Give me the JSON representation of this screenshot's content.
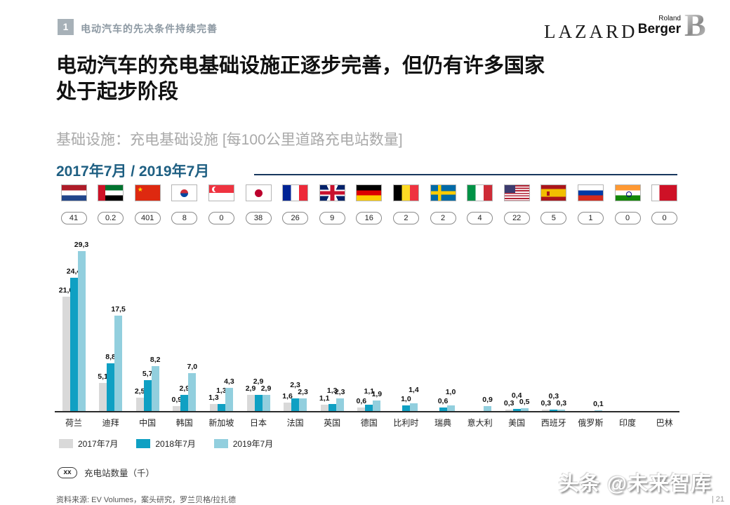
{
  "header": {
    "badge": "1",
    "section_title": "电动汽车的先决条件持续完善"
  },
  "logos": {
    "lazard": "LAZARD",
    "roland": "Roland",
    "berger": "Berger",
    "b_mark": "B"
  },
  "title": "电动汽车的充电基础设施正逐步完善，但仍有许多国家\n处于起步阶段",
  "subtitle": "基础设施：充电基础设施 [每100公里道路充电站数量]",
  "period": "2017年7月 / 2019年7月",
  "countries": [
    {
      "name": "荷兰",
      "flag": "nl",
      "stations": "41"
    },
    {
      "name": "迪拜",
      "flag": "ae",
      "stations": "0.2"
    },
    {
      "name": "中国",
      "flag": "cn",
      "stations": "401"
    },
    {
      "name": "韩国",
      "flag": "kr",
      "stations": "8"
    },
    {
      "name": "新加坡",
      "flag": "sg",
      "stations": "0"
    },
    {
      "name": "日本",
      "flag": "jp",
      "stations": "38"
    },
    {
      "name": "法国",
      "flag": "fr",
      "stations": "26"
    },
    {
      "name": "英国",
      "flag": "gb",
      "stations": "9"
    },
    {
      "name": "德国",
      "flag": "de",
      "stations": "16"
    },
    {
      "name": "比利时",
      "flag": "be",
      "stations": "2"
    },
    {
      "name": "瑞典",
      "flag": "se",
      "stations": "2"
    },
    {
      "name": "意大利",
      "flag": "it",
      "stations": "4"
    },
    {
      "name": "美国",
      "flag": "us",
      "stations": "22"
    },
    {
      "name": "西班牙",
      "flag": "es",
      "stations": "5"
    },
    {
      "name": "俄罗斯",
      "flag": "ru",
      "stations": "1"
    },
    {
      "name": "印度",
      "flag": "in",
      "stations": "0"
    },
    {
      "name": "巴林",
      "flag": "bh",
      "stations": "0"
    }
  ],
  "chart_data": {
    "type": "bar",
    "title": "充电基础设施 [每100公里道路充电站数量]",
    "categories": [
      "荷兰",
      "迪拜",
      "中国",
      "韩国",
      "新加坡",
      "日本",
      "法国",
      "英国",
      "德国",
      "比利时",
      "瑞典",
      "意大利",
      "美国",
      "西班牙",
      "俄罗斯",
      "印度",
      "巴林"
    ],
    "series": [
      {
        "name": "2017年7月",
        "color": "#d9d9d9",
        "values": [
          21.0,
          5.1,
          2.5,
          0.9,
          1.3,
          2.9,
          1.6,
          1.1,
          0.6,
          null,
          null,
          null,
          0.3,
          0.3,
          null,
          null,
          null
        ]
      },
      {
        "name": "2018年7月",
        "color": "#0fa0c3",
        "values": [
          24.4,
          8.8,
          5.7,
          2.9,
          1.3,
          2.9,
          2.3,
          1.3,
          1.1,
          1.0,
          0.6,
          null,
          0.4,
          0.3,
          null,
          null,
          null
        ]
      },
      {
        "name": "2019年7月",
        "color": "#92cfde",
        "values": [
          29.3,
          17.5,
          8.2,
          7.0,
          4.3,
          2.9,
          2.3,
          2.3,
          1.9,
          1.4,
          1.0,
          0.9,
          0.5,
          0.3,
          0.1,
          null,
          null
        ]
      }
    ],
    "ylim": [
      0,
      30
    ],
    "grid": false,
    "legend_position": "bottom-left",
    "decimal_separator": ","
  },
  "note": {
    "badge": "xx",
    "text": "充电站数量（千）"
  },
  "footer": {
    "source": "资料来源: EV Volumes，案头研究，罗兰贝格/拉扎德",
    "page": "| 21"
  },
  "watermark": "头条 @未来智库"
}
